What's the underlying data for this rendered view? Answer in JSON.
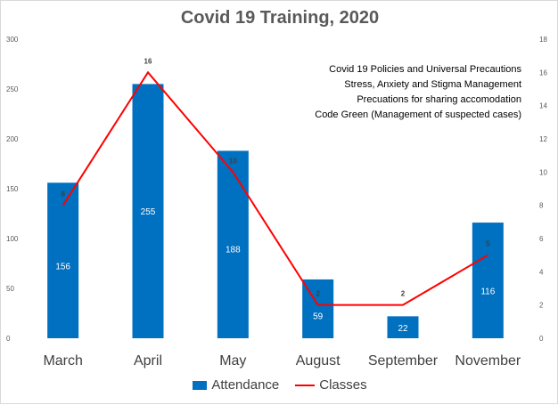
{
  "chart_data": {
    "type": "bar",
    "title": "Covid 19 Training, 2020",
    "categories": [
      "March",
      "April",
      "May",
      "August",
      "September",
      "November"
    ],
    "series": [
      {
        "name": "Attendance",
        "type": "bar",
        "axis": "left",
        "color": "#0070c0",
        "values": [
          156,
          255,
          188,
          59,
          22,
          116
        ]
      },
      {
        "name": "Classes",
        "type": "line",
        "axis": "right",
        "color": "#ff0000",
        "values": [
          8,
          16,
          10,
          2,
          2,
          5
        ]
      }
    ],
    "y_left": {
      "ylim": [
        0,
        300
      ],
      "ticks": [
        "0",
        "50",
        "100",
        "150",
        "200",
        "250",
        "300"
      ]
    },
    "y_right": {
      "ylim": [
        0,
        18
      ],
      "ticks": [
        "0",
        "2",
        "4",
        "6",
        "8",
        "10",
        "12",
        "14",
        "16",
        "18"
      ]
    },
    "grid": false,
    "legend": "bottom",
    "annotations": [
      "Covid 19 Policies and Universal Precautions",
      "Stress, Anxiety and Stigma Management",
      "Precuations for sharing accomodation",
      "Code Green (Management of suspected cases)"
    ]
  }
}
